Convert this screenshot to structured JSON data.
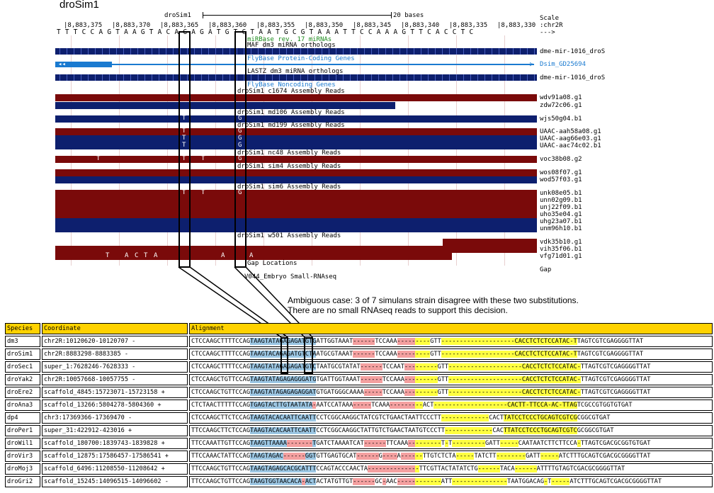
{
  "browser": {
    "title": "droSim1",
    "assembly_label": "droSim1",
    "scale_label": "20 bases",
    "scale_word": "Scale",
    "chrom": ":chr2R",
    "arrow": "--->",
    "positions": [
      "|8,883,375",
      "|8,883,370",
      "|8,883,365",
      "|8,883,360",
      "|8,883,355",
      "|8,883,350",
      "|8,883,345",
      "|8,883,340",
      "|8,883,335",
      "|8,883,330"
    ],
    "dna": "T T T C C A G T A A G T A C A G A G A T G T C T A A T G C G T A A A T T C C A A A G T T C A C C T C",
    "tracks": {
      "mirbase": "miRBase rev. 17 miRNAs",
      "maf": "MAF dm3 miRNA orthologs",
      "flybase_coding": "FlyBase Protein-Coding Genes",
      "lastz": "LASTZ dm3 miRNA orthologs",
      "flybase_noncoding": "FlyBase Noncoding Genes",
      "c1674": "droSim1 c1674 Assembly Reads",
      "md106": "droSim1 md106 Assembly Reads",
      "md199": "droSim1 md199 Assembly Reads",
      "nc48": "droSim1 nc48 Assembly Reads",
      "sim4": "droSim1 sim4 Assembly Reads",
      "sim6": "droSim1 sim6 Assembly Reads",
      "w501": "droSim1 w501 Assembly Reads",
      "gap": "Gap Locations",
      "v044": "V044_Embryo Small-RNAseq"
    },
    "right_labels": {
      "mir1": "dme-mir-1016_droS",
      "gene": "Dsim_GD25694",
      "mir2": "dme-mir-1016_droS",
      "r1": "wdv91a08.g1",
      "r2": "zdw72c06.g1",
      "r3": "wjs50g04.b1",
      "r4": "UAAC-aah58a08.g1",
      "r5": "UAAC-aag66e03.g1",
      "r6": "UAAC-aac74c02.b1",
      "r7": "voc38b08.g2",
      "r8": "wos08f07.g1",
      "r9": "wod57f03.g1",
      "r10": "unk08e05.b1",
      "r11": "unn02g09.b1",
      "r12": "unj22f09.b1",
      "r13": "uho35e04.g1",
      "r14": "uhg23a07.b1",
      "r15": "unm96h10.b1",
      "r16": "vdk35b10.g1",
      "r17": "vih35f06.b1",
      "r18": "vfg71d01.g1",
      "gap": "Gap"
    },
    "snps": {
      "t": "T",
      "g": "G",
      "a": "A",
      "c": "C"
    }
  },
  "annotation": {
    "line1": "Ambiguous case: 3 of 7 simulans strain disagree with these two substitutions.",
    "line2": "There are no small RNAseq reads to support this decision."
  },
  "alignment": {
    "headers": {
      "species": "Species",
      "coordinate": "Coordinate",
      "alignment": "Alignment"
    },
    "rows": [
      {
        "species": "dm3",
        "coord": "chr2R:10120620-10120707 -",
        "seq": "CTCCAAGCTTTTCCAGTAAGTATAGAGAGATGTGATTGGTAAAT------TCCAAA---------GTT--------------------CACCTCTCTCCATAC-TTAGTCGTCGAGGGGTTAT"
      },
      {
        "species": "droSim1",
        "coord": "chr2R:8883298-8883385 -",
        "seq": "CTCCAAGCTTTTCCAGTAAGTACAGAGATGTCTAATGCGTAAAT------TCCAAA---------GTT--------------------CACCTCTCTCCATAC-TTAGTCGTCGAGGGGTTAT"
      },
      {
        "species": "droSec1",
        "coord": "super_1:7628246-7628333 -",
        "seq": "CTCCAAGCTTTTCCAGTAAGTATAGAGAGATGTCTAATGCGTATAT------TCCAAT---------GTT--------------------CACCTCTCTCCATAC-TTAGTCGTCGAGGGGTTAT"
      },
      {
        "species": "droYak2",
        "coord": "chr2R:10057668-10057755 -",
        "seq": "CTCCAAGCTGTTCCAGTAAGTATAGAGAGGGATGTGATTGGTAAAT------TCCAAA---------GTT--------------------CACCTCTCTCCATAC-TTAGTCGTCGAGGGGTTAT"
      },
      {
        "species": "droEre2",
        "coord": "scaffold_4845:15723071-15723158 +",
        "seq": "CTCCAAGCTGTTCCAGTAAGTATAGAGAGAGGATGTGATGGGCAAAA-----TCCAAA---------GTT--------------------CACCTCTCTCCATAC-TTAGTCGTCGAGGGGTTAT"
      },
      {
        "species": "droAna3",
        "coord": "scaffold_13266:5804278-5804360 +",
        "seq": "CTCTAACTTTTTCCAGTGAGTACTTGTAATATA-AATCCATAAA-----TCAAA---------ACT--------------------CACTT-TTCCA-AC-TTAGTCGCCGTGGTGTGAT"
      },
      {
        "species": "dp4",
        "coord": "chr3:17369366-17369470 -",
        "seq": "CTCCAAGCTTCTCCAGTAAGTACACAATTCAATTCCTCGGCAAGGCTATCGTCTGAACTAATTCCCTT-------------CACTTATCCTCCCTGCAGTCGTCGCGGCGTGAT"
      },
      {
        "species": "droPer1",
        "coord": "super_31:422912-423016 +",
        "seq": "TTCCAAGCTTCTCCAGTAAGTACACAATTCAATTCCTCGGCAAGGCTATTGTCTGAACTAATGTCCCTT-------------CACTTATCCTCCCTGCAGTCGTCGCGGCGTGAT"
      },
      {
        "species": "droWil1",
        "coord": "scaffold_180700:1839743-1839828 +",
        "seq": "TTCCAAATTGTTCCAGTAAGTTAAAA-------TGATCTAAAATCAT------TTCAAA---------T-T---------GATT-----CAATAATCTTCTTCCA-TTAGTCGACGCGGTGTGAT"
      },
      {
        "species": "droVir3",
        "coord": "scaffold_12875:17586457-17586541 +",
        "seq": "TTCCAAACTATTCCAGTAAGTAGAC------GGTGTTGAGTGCAT------G----A------TTGTCTCTA-----TATCTT--------GATT-----ATCTTTGCAGTCGACGCGGGGTTAT"
      },
      {
        "species": "droMoj3",
        "coord": "scaffold_6496:11208550-11208642 +",
        "seq": "TTCCAAGCTGTTCCAGTAAGTAGAGCACGCATTTCCAGTACCCAACTA--------------TTCGTTACTATATCTG------TACA------ATTTTGTAGTCGACGCGGGGTTAT"
      },
      {
        "species": "droGri2",
        "coord": "scaffold_15245:14096515-14096602 -",
        "seq": "TTCCAAGCTGTTCCAGTAAGTGGTAACACA-ACTACTATGTTGT------GC-AAC------------ATT---------------TAATGGACAG-T-----ATCTTTGCAGTCGACGCGGGGTTAT"
      }
    ]
  },
  "colors": {
    "red": "#7a0a0a",
    "blue": "#0d1f6e",
    "header": "#ffd200",
    "track_link": "#1a7ad0"
  }
}
